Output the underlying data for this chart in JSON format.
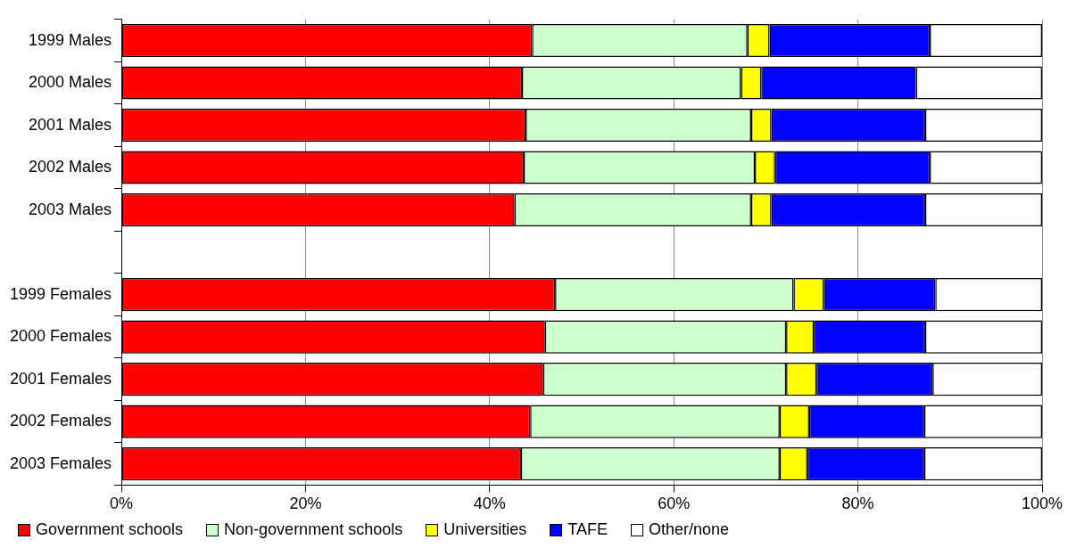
{
  "chart_data": {
    "type": "bar",
    "orientation": "horizontal",
    "stacked": true,
    "categories": [
      "1999 Males",
      "2000 Males",
      "2001 Males",
      "2002 Males",
      "2003 Males",
      null,
      "1999 Females",
      "2000 Females",
      "2001 Females",
      "2002 Females",
      "2003 Females"
    ],
    "series": [
      {
        "name": "Government schools",
        "color": "#ff0000",
        "values": [
          44.6,
          43.5,
          43.9,
          43.7,
          42.7,
          null,
          47.1,
          46.0,
          45.8,
          44.4,
          43.4
        ]
      },
      {
        "name": "Non-government schools",
        "color": "#ccffcc",
        "values": [
          23.4,
          23.8,
          24.5,
          25.1,
          25.7,
          null,
          25.9,
          26.2,
          26.4,
          27.1,
          28.1
        ]
      },
      {
        "name": "Universities",
        "color": "#ffff00",
        "values": [
          2.4,
          2.2,
          2.2,
          2.2,
          2.2,
          null,
          3.3,
          3.0,
          3.3,
          3.2,
          3.0
        ]
      },
      {
        "name": "TAFE",
        "color": "#0000ff",
        "values": [
          17.4,
          16.8,
          16.7,
          16.8,
          16.7,
          null,
          12.1,
          12.1,
          12.6,
          12.5,
          12.7
        ]
      },
      {
        "name": "Other/none",
        "color": "#fcfcfc",
        "values": [
          12.2,
          13.7,
          12.7,
          12.2,
          12.7,
          null,
          11.6,
          12.7,
          11.9,
          12.8,
          12.8
        ]
      }
    ],
    "xlim": [
      0,
      100
    ],
    "xticks": [
      {
        "value": 0,
        "label": "0%"
      },
      {
        "value": 20,
        "label": "20%"
      },
      {
        "value": 40,
        "label": "40%"
      },
      {
        "value": 60,
        "label": "60%"
      },
      {
        "value": 80,
        "label": "80%"
      },
      {
        "value": 100,
        "label": "100%"
      }
    ],
    "grid": "x",
    "legend": "bottom"
  }
}
